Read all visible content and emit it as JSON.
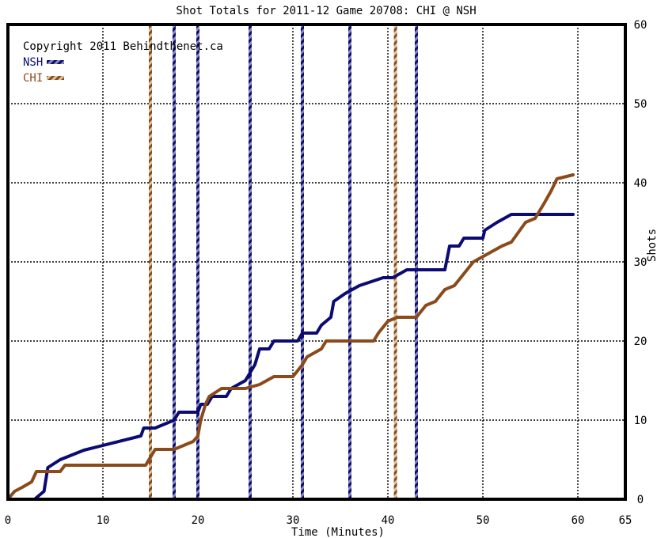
{
  "chart_data": {
    "type": "line",
    "title": "Shot Totals for 2011-12 Game 20708: CHI @ NSH",
    "xlabel": "Time (Minutes)",
    "ylabel": "Shots",
    "xlim": [
      0,
      65
    ],
    "ylim": [
      0,
      60
    ],
    "x_ticks": [
      0,
      10,
      20,
      30,
      40,
      50,
      60,
      65
    ],
    "y_ticks": [
      0,
      10,
      20,
      30,
      40,
      50,
      60
    ],
    "grid": true,
    "legend_position": "top-left",
    "copyright": "Copyright 2011 Behindthenet.ca",
    "period_marks": [
      10,
      20,
      30,
      40,
      50,
      60
    ],
    "series": [
      {
        "name": "NSH",
        "color": "#0b0b73",
        "points": [
          [
            0,
            0
          ],
          [
            2.8,
            0
          ],
          [
            3.8,
            1
          ],
          [
            4.2,
            4
          ],
          [
            5.5,
            5
          ],
          [
            8,
            6.2
          ],
          [
            14,
            8
          ],
          [
            14.3,
            9
          ],
          [
            15.5,
            9
          ],
          [
            17.5,
            10
          ],
          [
            18,
            11
          ],
          [
            20,
            11
          ],
          [
            20.3,
            12
          ],
          [
            21,
            12
          ],
          [
            21.5,
            13
          ],
          [
            23,
            13
          ],
          [
            23.5,
            14
          ],
          [
            25,
            15
          ],
          [
            25.5,
            16
          ],
          [
            26,
            17
          ],
          [
            26.5,
            19
          ],
          [
            27.5,
            19
          ],
          [
            28,
            20
          ],
          [
            29.5,
            20
          ],
          [
            30.5,
            20
          ],
          [
            31,
            21
          ],
          [
            32.5,
            21
          ],
          [
            33,
            22
          ],
          [
            34,
            23
          ],
          [
            34.3,
            25
          ],
          [
            35.5,
            26
          ],
          [
            37,
            27
          ],
          [
            39.5,
            28
          ],
          [
            40.5,
            28
          ],
          [
            42,
            29
          ],
          [
            44,
            29
          ],
          [
            46,
            29
          ],
          [
            46.5,
            32
          ],
          [
            47.5,
            32
          ],
          [
            48,
            33
          ],
          [
            50,
            33
          ],
          [
            50.2,
            34
          ],
          [
            51.5,
            35
          ],
          [
            53,
            36
          ],
          [
            59.5,
            36
          ]
        ]
      },
      {
        "name": "CHI",
        "color": "#8b4a1a",
        "points": [
          [
            0,
            0
          ],
          [
            0.7,
            1
          ],
          [
            1.5,
            1.5
          ],
          [
            2.5,
            2.2
          ],
          [
            3,
            3.5
          ],
          [
            5.5,
            3.5
          ],
          [
            6,
            4.3
          ],
          [
            14.5,
            4.3
          ],
          [
            15.5,
            6.3
          ],
          [
            17.5,
            6.3
          ],
          [
            19.5,
            7.3
          ],
          [
            20,
            8
          ],
          [
            20.3,
            10
          ],
          [
            20.8,
            12
          ],
          [
            21.2,
            13
          ],
          [
            22.5,
            14
          ],
          [
            25,
            14
          ],
          [
            26.5,
            14.5
          ],
          [
            28,
            15.5
          ],
          [
            30,
            15.5
          ],
          [
            31,
            17
          ],
          [
            31.5,
            18
          ],
          [
            33,
            19
          ],
          [
            33.5,
            20
          ],
          [
            38.5,
            20
          ],
          [
            39,
            21
          ],
          [
            40,
            22.5
          ],
          [
            41,
            23
          ],
          [
            43,
            23
          ],
          [
            44,
            24.5
          ],
          [
            45,
            25
          ],
          [
            46,
            26.5
          ],
          [
            47,
            27
          ],
          [
            48,
            28.5
          ],
          [
            49,
            30
          ],
          [
            50.5,
            31
          ],
          [
            52,
            32
          ],
          [
            53,
            32.5
          ],
          [
            54.5,
            35
          ],
          [
            55.5,
            35.5
          ],
          [
            56.5,
            37.5
          ],
          [
            57.2,
            39
          ],
          [
            57.8,
            40.5
          ],
          [
            59.5,
            41
          ]
        ]
      }
    ],
    "goal_lines": [
      {
        "x": 15,
        "team": "CHI"
      },
      {
        "x": 17.5,
        "team": "NSH"
      },
      {
        "x": 20,
        "team": "NSH"
      },
      {
        "x": 25.5,
        "team": "NSH"
      },
      {
        "x": 31,
        "team": "NSH"
      },
      {
        "x": 36,
        "team": "NSH"
      },
      {
        "x": 40.8,
        "team": "CHI"
      },
      {
        "x": 43,
        "team": "NSH"
      }
    ]
  }
}
